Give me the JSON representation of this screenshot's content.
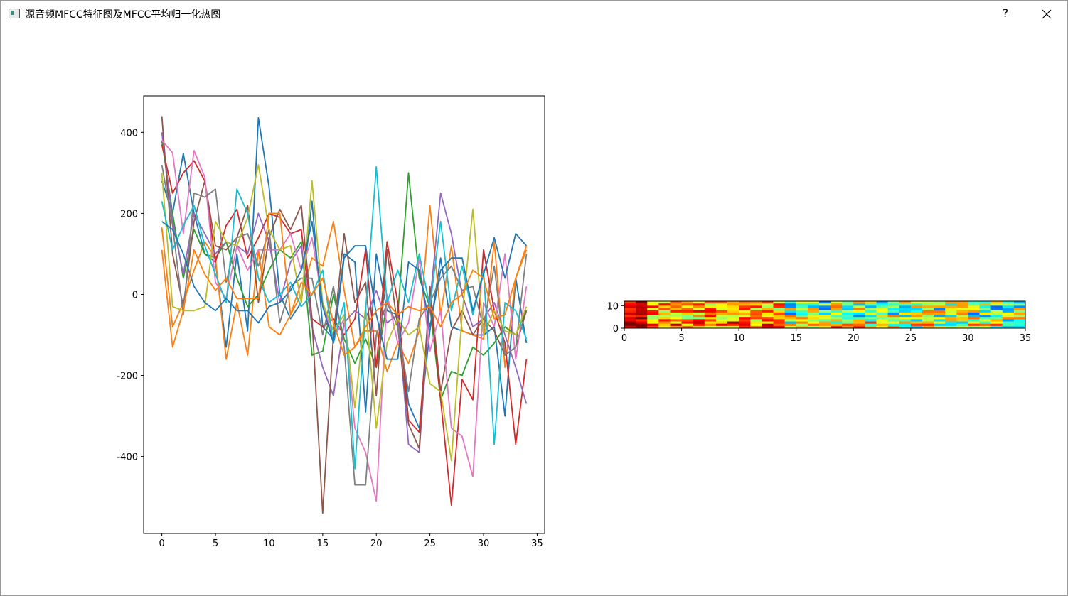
{
  "window": {
    "title": "源音频MFCC特征图及MFCC平均归一化热图",
    "help_label": "?",
    "icons": {
      "app": "app-window-icon",
      "close": "close-icon"
    }
  },
  "chart_data": [
    {
      "type": "line",
      "xlim": [
        -1.7,
        35.7
      ],
      "ylim": [
        -590,
        490
      ],
      "xticks": [
        0,
        5,
        10,
        15,
        20,
        25,
        30,
        35
      ],
      "yticks": [
        -400,
        -200,
        0,
        200,
        400
      ],
      "grid": false,
      "series": [
        {
          "color": "#1f77b4",
          "values": [
            280,
            200,
            348,
            200,
            100,
            80,
            -130,
            100,
            -90,
            436,
            265,
            0,
            -60,
            -20,
            230,
            -80,
            -110,
            100,
            80,
            -290,
            100,
            -40,
            -50,
            -270,
            -330,
            -90,
            90,
            -80,
            -90,
            -100,
            -100,
            -80,
            -300,
            40,
            -120
          ]
        },
        {
          "color": "#ff7f0e",
          "values": [
            165,
            -80,
            -20,
            60,
            130,
            90,
            -160,
            -20,
            -150,
            110,
            -80,
            -100,
            -50,
            0,
            90,
            70,
            180,
            10,
            -130,
            -90,
            -90,
            -190,
            -120,
            -170,
            -90,
            220,
            -50,
            120,
            -90,
            -100,
            -110,
            130,
            -180,
            40,
            120
          ]
        },
        {
          "color": "#2ca02c",
          "values": [
            380,
            200,
            40,
            160,
            100,
            90,
            130,
            40,
            -30,
            0,
            60,
            110,
            90,
            130,
            -150,
            -140,
            0,
            -110,
            -170,
            -110,
            -180,
            -20,
            -50,
            300,
            40,
            -30,
            -260,
            -190,
            -200,
            -130,
            -150,
            -120,
            -80,
            -100,
            -40
          ]
        },
        {
          "color": "#d62728",
          "values": [
            370,
            250,
            300,
            330,
            280,
            80,
            170,
            210,
            90,
            140,
            200,
            190,
            150,
            160,
            -60,
            -80,
            -60,
            -100,
            -60,
            110,
            -180,
            130,
            -20,
            -310,
            -340,
            0,
            -260,
            -520,
            -210,
            -260,
            110,
            -40,
            -120,
            -370,
            -160
          ]
        },
        {
          "color": "#9467bd",
          "values": [
            400,
            180,
            50,
            200,
            150,
            100,
            130,
            120,
            100,
            200,
            130,
            -20,
            80,
            120,
            -80,
            -180,
            -250,
            -70,
            -40,
            -60,
            10,
            -70,
            -50,
            -370,
            -390,
            -20,
            250,
            150,
            0,
            -80,
            -60,
            -20,
            -100,
            -180,
            -270
          ]
        },
        {
          "color": "#8c564b",
          "values": [
            440,
            100,
            -30,
            180,
            280,
            120,
            110,
            140,
            220,
            -20,
            140,
            210,
            160,
            220,
            -60,
            -540,
            -100,
            150,
            -20,
            30,
            -250,
            110,
            -80,
            -320,
            -380,
            20,
            -240,
            -90,
            -40,
            -100,
            -60,
            -90,
            -150,
            -130,
            -40
          ]
        },
        {
          "color": "#e377c2",
          "values": [
            380,
            350,
            150,
            355,
            290,
            30,
            -10,
            120,
            60,
            110,
            110,
            110,
            150,
            60,
            140,
            -20,
            -110,
            -60,
            -330,
            -390,
            -510,
            0,
            -120,
            -70,
            90,
            -140,
            -40,
            -330,
            -350,
            -450,
            -20,
            -80,
            100,
            -160,
            20
          ]
        },
        {
          "color": "#7f7f7f",
          "values": [
            320,
            170,
            -50,
            250,
            240,
            260,
            30,
            140,
            150,
            70,
            160,
            -70,
            20,
            40,
            40,
            -100,
            20,
            -130,
            -470,
            -470,
            -100,
            -20,
            -80,
            -240,
            -60,
            -20,
            40,
            70,
            10,
            20,
            -80,
            70,
            -150,
            -130,
            100
          ]
        },
        {
          "color": "#bcbd22",
          "values": [
            300,
            -30,
            -40,
            -40,
            -30,
            180,
            130,
            120,
            190,
            320,
            160,
            110,
            120,
            -20,
            280,
            -20,
            -90,
            -50,
            -280,
            -30,
            -330,
            -120,
            -60,
            -100,
            -80,
            -220,
            -240,
            -410,
            -50,
            210,
            -100,
            -40,
            -90,
            -100,
            -30
          ]
        },
        {
          "color": "#17becf",
          "values": [
            230,
            110,
            170,
            220,
            120,
            50,
            -20,
            260,
            200,
            40,
            -20,
            0,
            30,
            -30,
            0,
            60,
            -120,
            -20,
            -430,
            -40,
            315,
            -20,
            60,
            -20,
            100,
            -30,
            180,
            -40,
            70,
            -50,
            60,
            -370,
            -20,
            -40,
            -110
          ]
        },
        {
          "color": "#1f77b4",
          "values": [
            180,
            160,
            100,
            20,
            -20,
            -40,
            -10,
            -40,
            -40,
            -70,
            -30,
            -20,
            10,
            60,
            180,
            -30,
            -120,
            90,
            120,
            120,
            -50,
            -160,
            -160,
            80,
            60,
            -80,
            60,
            90,
            90,
            -40,
            50,
            140,
            40,
            150,
            120
          ]
        },
        {
          "color": "#ff7f0e",
          "values": [
            110,
            -130,
            -40,
            110,
            50,
            10,
            40,
            -10,
            -10,
            -10,
            200,
            200,
            -50,
            30,
            0,
            40,
            -70,
            -150,
            -130,
            -80,
            -40,
            -20,
            -50,
            -30,
            -40,
            -30,
            -80,
            -20,
            0,
            60,
            40,
            -60,
            -50,
            40,
            110
          ]
        }
      ]
    },
    {
      "type": "heatmap",
      "xlim": [
        0,
        35
      ],
      "ylim": [
        0,
        12
      ],
      "xticks": [
        0,
        5,
        10,
        15,
        20,
        25,
        30,
        35
      ],
      "yticks": [
        0,
        10
      ],
      "colormap": "jet",
      "columns": 35,
      "rows": 12
    }
  ]
}
